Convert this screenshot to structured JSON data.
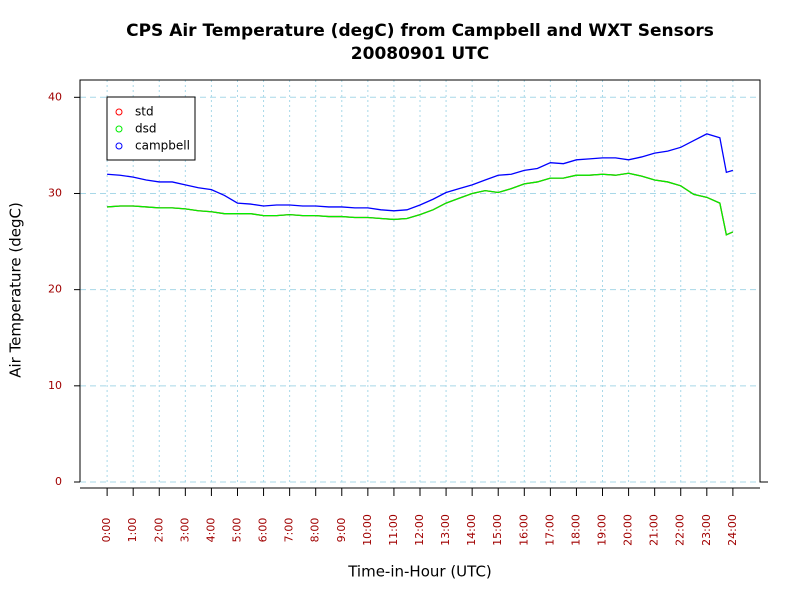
{
  "chart_data": {
    "type": "line",
    "title": "CPS Air Temperature (degC) from Campbell and WXT Sensors",
    "subtitle": "20080901  UTC",
    "x_label": "Time-in-Hour (UTC)",
    "y_label": "Air Temperature (degC)",
    "x": [
      0,
      0.5,
      1,
      1.5,
      2,
      2.5,
      3,
      3.5,
      4,
      4.5,
      5,
      5.5,
      6,
      6.5,
      7,
      7.5,
      8,
      8.5,
      9,
      9.5,
      10,
      10.5,
      11,
      11.5,
      12,
      12.5,
      13,
      13.5,
      14,
      14.5,
      15,
      15.5,
      16,
      16.5,
      17,
      17.5,
      18,
      18.5,
      19,
      19.5,
      20,
      20.5,
      21,
      21.5,
      22,
      22.5,
      23,
      23.5,
      23.75,
      24
    ],
    "series": [
      {
        "name": "std",
        "color": "#ff0000",
        "values": [
          28.6,
          28.7,
          28.7,
          28.6,
          28.5,
          28.5,
          28.4,
          28.2,
          28.1,
          27.9,
          27.9,
          27.9,
          27.7,
          27.7,
          27.8,
          27.7,
          27.7,
          27.6,
          27.6,
          27.5,
          27.5,
          27.4,
          27.3,
          27.4,
          27.8,
          28.3,
          29.0,
          29.5,
          30.0,
          30.3,
          30.1,
          30.5,
          31.0,
          31.2,
          31.6,
          31.6,
          31.9,
          31.9,
          32.0,
          31.9,
          32.1,
          31.8,
          31.4,
          31.2,
          30.8,
          29.9,
          29.6,
          29.0,
          25.7,
          26.0
        ]
      },
      {
        "name": "dsd",
        "color": "#00ee00",
        "values": [
          28.6,
          28.7,
          28.7,
          28.6,
          28.5,
          28.5,
          28.4,
          28.2,
          28.1,
          27.9,
          27.9,
          27.9,
          27.7,
          27.7,
          27.8,
          27.7,
          27.7,
          27.6,
          27.6,
          27.5,
          27.5,
          27.4,
          27.3,
          27.4,
          27.8,
          28.3,
          29.0,
          29.5,
          30.0,
          30.3,
          30.1,
          30.5,
          31.0,
          31.2,
          31.6,
          31.6,
          31.9,
          31.9,
          32.0,
          31.9,
          32.1,
          31.8,
          31.4,
          31.2,
          30.8,
          29.9,
          29.6,
          29.0,
          25.7,
          26.0
        ]
      },
      {
        "name": "campbell",
        "color": "#0000ff",
        "values": [
          32.0,
          31.9,
          31.7,
          31.4,
          31.2,
          31.2,
          30.9,
          30.6,
          30.4,
          29.8,
          29.0,
          28.9,
          28.7,
          28.8,
          28.8,
          28.7,
          28.7,
          28.6,
          28.6,
          28.5,
          28.5,
          28.3,
          28.2,
          28.3,
          28.8,
          29.4,
          30.1,
          30.5,
          30.9,
          31.4,
          31.9,
          32.0,
          32.4,
          32.6,
          33.2,
          33.1,
          33.5,
          33.6,
          33.7,
          33.7,
          33.5,
          33.8,
          34.2,
          34.4,
          34.8,
          35.5,
          36.2,
          35.8,
          32.2,
          32.4
        ]
      }
    ],
    "xlim": [
      -1.04,
      25.04
    ],
    "ylim": [
      0,
      41.8
    ],
    "xticks": [
      {
        "value": 0,
        "label": "0:00"
      },
      {
        "value": 1,
        "label": "1:00"
      },
      {
        "value": 2,
        "label": "2:00"
      },
      {
        "value": 3,
        "label": "3:00"
      },
      {
        "value": 4,
        "label": "4:00"
      },
      {
        "value": 5,
        "label": "5:00"
      },
      {
        "value": 6,
        "label": "6:00"
      },
      {
        "value": 7,
        "label": "7:00"
      },
      {
        "value": 8,
        "label": "8:00"
      },
      {
        "value": 9,
        "label": "9:00"
      },
      {
        "value": 10,
        "label": "10:00"
      },
      {
        "value": 11,
        "label": "11:00"
      },
      {
        "value": 12,
        "label": "12:00"
      },
      {
        "value": 13,
        "label": "13:00"
      },
      {
        "value": 14,
        "label": "14:00"
      },
      {
        "value": 15,
        "label": "15:00"
      },
      {
        "value": 16,
        "label": "16:00"
      },
      {
        "value": 17,
        "label": "17:00"
      },
      {
        "value": 18,
        "label": "18:00"
      },
      {
        "value": 19,
        "label": "19:00"
      },
      {
        "value": 20,
        "label": "20:00"
      },
      {
        "value": 21,
        "label": "21:00"
      },
      {
        "value": 22,
        "label": "22:00"
      },
      {
        "value": 23,
        "label": "23:00"
      },
      {
        "value": 24,
        "label": "24:00"
      }
    ],
    "yticks": [
      0,
      10,
      20,
      30,
      40
    ],
    "grid": true,
    "legend": "top-left"
  }
}
